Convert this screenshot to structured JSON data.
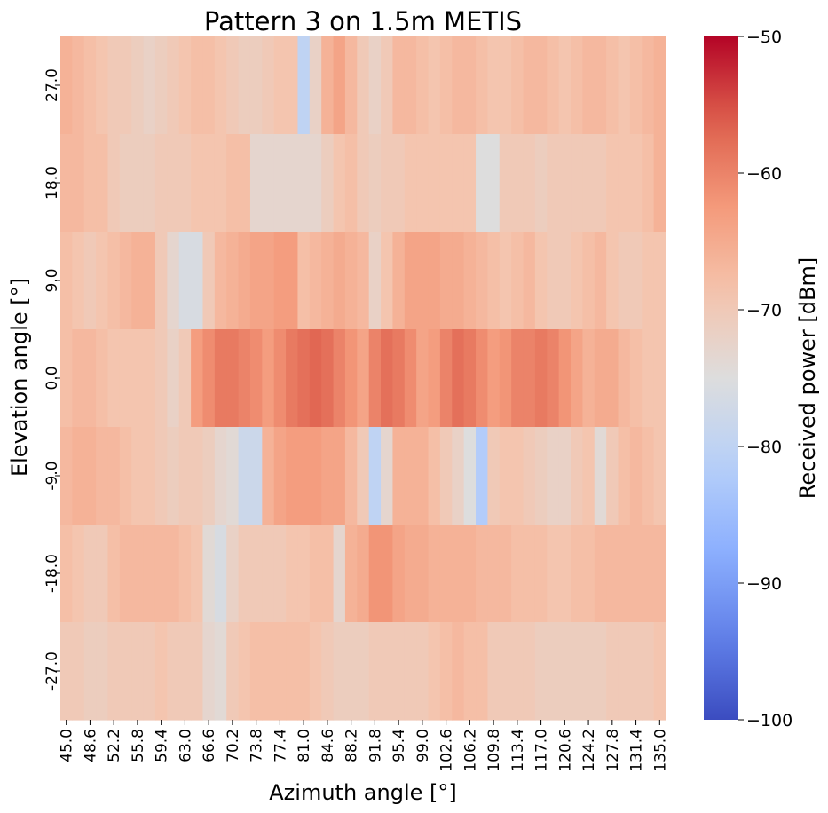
{
  "chart_data": {
    "type": "heatmap",
    "title": "Pattern 3 on 1.5m METIS",
    "xlabel": "Azimuth angle [°]",
    "ylabel": "Elevation angle [°]",
    "colorbar_label": "Received power [dBm]",
    "colormap": "coolwarm",
    "vmin": -100,
    "vmax": -50,
    "colorbar_ticks": [
      -50,
      -60,
      -70,
      -80,
      -90,
      -100
    ],
    "colorbar_tick_labels": [
      "−50",
      "−60",
      "−70",
      "−80",
      "−90",
      "−100"
    ],
    "x_tick_labels": [
      "45.0",
      "48.6",
      "52.2",
      "55.8",
      "59.4",
      "63.0",
      "66.6",
      "70.2",
      "73.8",
      "77.4",
      "81.0",
      "84.6",
      "88.2",
      "91.8",
      "95.4",
      "99.0",
      "102.6",
      "106.2",
      "109.8",
      "113.4",
      "117.0",
      "120.6",
      "124.2",
      "127.8",
      "131.4",
      "135.0"
    ],
    "y_tick_labels": [
      "27.0",
      "18.0",
      "9.0",
      "0.0",
      "-9.0",
      "-18.0",
      "-27.0"
    ],
    "azimuth_start": 45.0,
    "azimuth_step": 1.8,
    "elevations": [
      27.0,
      18.0,
      9.0,
      0.0,
      -9.0,
      -18.0,
      -27.0
    ],
    "values": [
      [
        -66,
        -67,
        -68,
        -69,
        -70,
        -70,
        -71,
        -72,
        -71,
        -70,
        -69,
        -68,
        -68,
        -69,
        -70,
        -71,
        -71,
        -70,
        -69,
        -69,
        -80,
        -72,
        -66,
        -64,
        -67,
        -70,
        -72,
        -70,
        -67,
        -67,
        -68,
        -69,
        -68,
        -67,
        -67,
        -68,
        -69,
        -69,
        -68,
        -67,
        -67,
        -68,
        -69,
        -68,
        -67,
        -67,
        -68,
        -69,
        -68,
        -67,
        -66
      ],
      [
        -67,
        -67,
        -68,
        -68,
        -70,
        -71,
        -71,
        -71,
        -70,
        -70,
        -70,
        -69,
        -69,
        -69,
        -68,
        -68,
        -73,
        -73,
        -73,
        -73,
        -73,
        -73,
        -71,
        -69,
        -68,
        -70,
        -71,
        -70,
        -70,
        -69,
        -69,
        -69,
        -69,
        -69,
        -69,
        -75,
        -75,
        -70,
        -70,
        -70,
        -71,
        -70,
        -70,
        -70,
        -70,
        -70,
        -69,
        -69,
        -69,
        -68,
        -66
      ],
      [
        -68,
        -69,
        -70,
        -69,
        -68,
        -67,
        -66,
        -66,
        -70,
        -73,
        -76,
        -76,
        -70,
        -67,
        -66,
        -65,
        -64,
        -64,
        -63,
        -63,
        -68,
        -67,
        -66,
        -65,
        -66,
        -67,
        -72,
        -69,
        -66,
        -64,
        -64,
        -64,
        -65,
        -65,
        -66,
        -67,
        -68,
        -69,
        -68,
        -67,
        -69,
        -70,
        -70,
        -69,
        -68,
        -67,
        -69,
        -70,
        -70,
        -69,
        -69
      ],
      [
        -68,
        -67,
        -67,
        -68,
        -69,
        -69,
        -69,
        -69,
        -70,
        -72,
        -70,
        -63,
        -61,
        -59,
        -59,
        -60,
        -61,
        -63,
        -61,
        -59,
        -58,
        -57,
        -58,
        -60,
        -62,
        -64,
        -60,
        -58,
        -59,
        -61,
        -64,
        -63,
        -60,
        -58,
        -59,
        -61,
        -63,
        -62,
        -60,
        -60,
        -59,
        -60,
        -62,
        -64,
        -66,
        -65,
        -65,
        -67,
        -68,
        -69,
        -69
      ],
      [
        -67,
        -66,
        -66,
        -67,
        -67,
        -68,
        -69,
        -69,
        -70,
        -71,
        -70,
        -70,
        -71,
        -73,
        -74,
        -78,
        -78,
        -66,
        -64,
        -63,
        -63,
        -63,
        -64,
        -64,
        -67,
        -70,
        -80,
        -73,
        -66,
        -66,
        -66,
        -68,
        -70,
        -72,
        -75,
        -82,
        -70,
        -69,
        -69,
        -70,
        -71,
        -72,
        -72,
        -70,
        -69,
        -74,
        -70,
        -68,
        -67,
        -68,
        -69
      ],
      [
        -68,
        -69,
        -70,
        -70,
        -68,
        -67,
        -67,
        -67,
        -67,
        -67,
        -68,
        -69,
        -74,
        -76,
        -72,
        -70,
        -70,
        -70,
        -70,
        -69,
        -69,
        -68,
        -68,
        -73,
        -66,
        -65,
        -62,
        -62,
        -64,
        -65,
        -65,
        -66,
        -66,
        -66,
        -66,
        -67,
        -67,
        -67,
        -68,
        -68,
        -68,
        -69,
        -69,
        -68,
        -68,
        -67,
        -67,
        -67,
        -67,
        -67,
        -67
      ],
      [
        -70,
        -70,
        -71,
        -71,
        -70,
        -70,
        -70,
        -70,
        -69,
        -70,
        -70,
        -70,
        -73,
        -74,
        -70,
        -69,
        -68,
        -68,
        -68,
        -68,
        -68,
        -69,
        -70,
        -71,
        -71,
        -71,
        -70,
        -70,
        -70,
        -70,
        -70,
        -69,
        -68,
        -67,
        -68,
        -68,
        -70,
        -70,
        -70,
        -70,
        -71,
        -71,
        -71,
        -71,
        -71,
        -71,
        -70,
        -70,
        -70,
        -70,
        -69
      ]
    ]
  }
}
